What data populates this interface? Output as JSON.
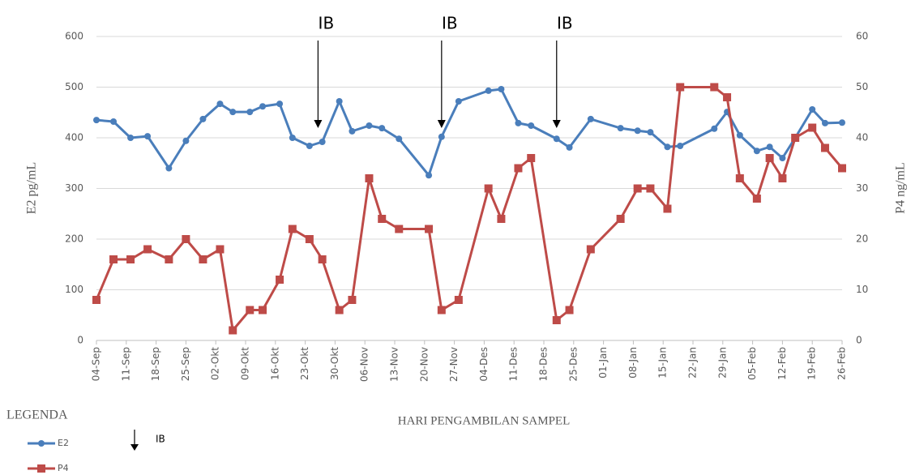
{
  "chart_data": {
    "type": "line",
    "x_label": "HARI PENGAMBILAN SAMPEL",
    "y_label": "E2 pg/mL",
    "y2_label": "P4 ng/mL",
    "x": [
      0,
      4,
      8,
      12,
      17,
      21,
      25,
      29,
      32,
      36,
      39,
      43,
      46,
      50,
      53,
      57,
      60,
      64,
      67,
      71,
      78,
      81,
      85,
      92,
      95,
      99,
      102,
      108,
      111,
      116,
      123,
      127,
      130,
      134,
      137,
      145,
      148,
      151,
      155,
      158,
      161,
      164,
      168,
      171,
      175
    ],
    "series": [
      {
        "name": "E2",
        "color": "#4a7ebb",
        "marker": "circle",
        "values": [
          435,
          432,
          400,
          403,
          340,
          394,
          437,
          467,
          451,
          451,
          462,
          467,
          400,
          384,
          392,
          472,
          413,
          424,
          419,
          398,
          326,
          402,
          472,
          493,
          496,
          429,
          424,
          398,
          381,
          437,
          419,
          414,
          411,
          382,
          384,
          418,
          451,
          405,
          374,
          382,
          360,
          400,
          456,
          429,
          430
        ]
      },
      {
        "name": "P4",
        "color": "#be4b48",
        "marker": "square",
        "axis": "y2",
        "values": [
          8,
          16,
          16,
          18,
          16,
          20,
          16,
          18,
          2,
          6,
          6,
          12,
          22,
          20,
          16,
          6,
          8,
          32,
          24,
          22,
          22,
          6,
          8,
          30,
          24,
          34,
          36,
          4,
          6,
          18,
          24,
          30,
          30,
          26,
          50,
          50,
          48,
          32,
          28,
          36,
          32,
          40,
          42,
          38,
          34
        ]
      }
    ],
    "xlim": [
      0,
      175
    ],
    "xticks": [
      {
        "value": 0,
        "label": "04-Sep"
      },
      {
        "value": 7,
        "label": "11-Sep"
      },
      {
        "value": 14,
        "label": "18-Sep"
      },
      {
        "value": 21,
        "label": "25-Sep"
      },
      {
        "value": 28,
        "label": "02-Okt"
      },
      {
        "value": 35,
        "label": "09-Okt"
      },
      {
        "value": 42,
        "label": "16-Okt"
      },
      {
        "value": 49,
        "label": "23-Okt"
      },
      {
        "value": 56,
        "label": "30-Okt"
      },
      {
        "value": 63,
        "label": "06-Nov"
      },
      {
        "value": 70,
        "label": "13-Nov"
      },
      {
        "value": 77,
        "label": "20-Nov"
      },
      {
        "value": 84,
        "label": "27-Nov"
      },
      {
        "value": 91,
        "label": "04-Des"
      },
      {
        "value": 98,
        "label": "11-Des"
      },
      {
        "value": 105,
        "label": "18-Des"
      },
      {
        "value": 112,
        "label": "25-Des"
      },
      {
        "value": 119,
        "label": "01-Jan"
      },
      {
        "value": 126,
        "label": "08-Jan"
      },
      {
        "value": 133,
        "label": "15-Jan"
      },
      {
        "value": 140,
        "label": "22-Jan"
      },
      {
        "value": 147,
        "label": "29-Jan"
      },
      {
        "value": 154,
        "label": "05-Feb"
      },
      {
        "value": 161,
        "label": "12-Feb"
      },
      {
        "value": 168,
        "label": "19-Feb"
      },
      {
        "value": 175,
        "label": "26-Feb"
      }
    ],
    "ylim": [
      0,
      600
    ],
    "yticks": [
      0,
      100,
      200,
      300,
      400,
      500,
      600
    ],
    "y2lim": [
      0,
      60
    ],
    "y2ticks": [
      0,
      10,
      20,
      30,
      40,
      50,
      60
    ],
    "grid": true,
    "annotations": [
      {
        "text": "IB",
        "x": 52
      },
      {
        "text": "IB",
        "x": 81
      },
      {
        "text": "IB",
        "x": 108
      }
    ],
    "legend_title": "LEGENDA",
    "legend_arrow_label": "IB"
  }
}
